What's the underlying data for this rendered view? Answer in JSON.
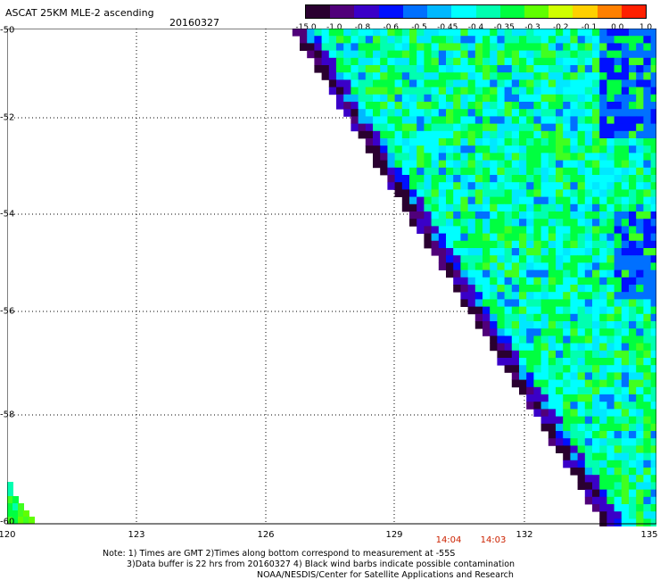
{
  "header": {
    "title": "ASCAT 25KM MLE-2 ascending",
    "date": "20160327"
  },
  "colorbar": {
    "labels": [
      "-15.0",
      "-1.0",
      "-0.8",
      "-0.6",
      "-0.5",
      "-0.45",
      "-0.4",
      "-0.35",
      "-0.3",
      "-0.2",
      "-0.1",
      "0.0",
      "1.0"
    ],
    "colors": [
      "#2a0030",
      "#50007a",
      "#3a00c8",
      "#0010ff",
      "#0070ff",
      "#00b8ff",
      "#00ffff",
      "#00ffb0",
      "#00ff40",
      "#60ff00",
      "#d0ff00",
      "#ffd000",
      "#ff8000",
      "#ff2000"
    ]
  },
  "map": {
    "lat_labels": [
      "-50",
      "-52",
      "-54",
      "-56",
      "-58",
      "-60"
    ],
    "lon_labels": [
      "120",
      "123",
      "126",
      "129",
      "132",
      "135"
    ],
    "time_labels": [
      "14:04",
      "14:03"
    ]
  },
  "notes": {
    "line1": "Note: 1) Times are GMT 2)Times along bottom correspond to measurement at -55S",
    "line2": "3)Data buffer is 22 hrs from 20160327 4) Black wind barbs indicate possible contamination",
    "line3": "NOAA/NESDIS/Center for Satellite Applications and Research"
  }
}
